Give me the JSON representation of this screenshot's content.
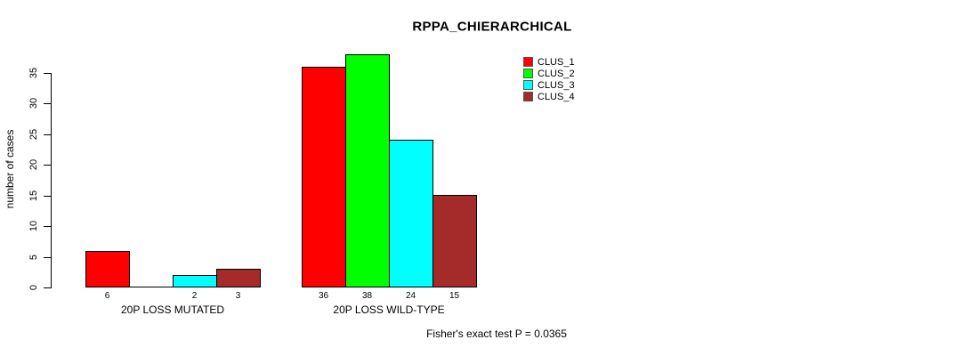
{
  "chart_data": {
    "type": "bar",
    "title": "RPPA_CHIERARCHICAL",
    "ylabel": "number of cases",
    "xlabel": "",
    "categories": [
      "20P LOSS MUTATED",
      "20P LOSS WILD-TYPE"
    ],
    "series": [
      {
        "name": "CLUS_1",
        "color": "#ff0000",
        "values": [
          6,
          36
        ]
      },
      {
        "name": "CLUS_2",
        "color": "#00ff00",
        "values": [
          0,
          38
        ]
      },
      {
        "name": "CLUS_3",
        "color": "#00ffff",
        "values": [
          2,
          24
        ]
      },
      {
        "name": "CLUS_4",
        "color": "#a52a2a",
        "values": [
          3,
          15
        ]
      }
    ],
    "yticks": [
      0,
      5,
      10,
      15,
      20,
      25,
      30,
      35
    ],
    "ylim": [
      0,
      38
    ],
    "grid": false,
    "legend_position": "top-right",
    "bar_value_labels_shown": true,
    "zero_bars_unlabeled": true,
    "annotation": "Fisher's exact test P = 0.0365",
    "background": "#ffffff",
    "text_color": "#000000"
  }
}
